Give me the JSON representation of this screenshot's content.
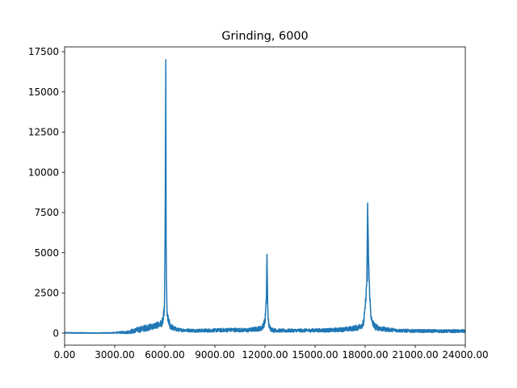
{
  "chart_data": {
    "type": "line",
    "title": "Grinding, 6000",
    "xlabel": "",
    "ylabel": "",
    "xlim": [
      0,
      24000
    ],
    "ylim": [
      -750,
      17800
    ],
    "xticks": [
      0,
      3000,
      6000,
      9000,
      12000,
      15000,
      18000,
      21000,
      24000
    ],
    "xtick_labels": [
      "0.00",
      "3000.00",
      "6000.00",
      "9000.00",
      "12000.00",
      "15000.00",
      "18000.00",
      "21000.00",
      "24000.00"
    ],
    "yticks": [
      0,
      2500,
      5000,
      7500,
      10000,
      12500,
      15000,
      17500
    ],
    "ytick_labels": [
      "0",
      "2500",
      "5000",
      "7500",
      "10000",
      "12500",
      "15000",
      "17500"
    ],
    "grid": false,
    "legend": "none",
    "series": [
      {
        "color": "#1f77b4",
        "x": [
          0,
          1000,
          2000,
          3000,
          3800,
          4200,
          4600,
          5000,
          5300,
          5600,
          5800,
          5900,
          5980,
          6020,
          6060,
          6080,
          6100,
          6120,
          6140,
          6180,
          6220,
          6300,
          6500,
          6800,
          7200,
          8000,
          9000,
          10000,
          11000,
          11800,
          12000,
          12080,
          12120,
          12160,
          12200,
          12240,
          12300,
          12500,
          13000,
          14000,
          15000,
          16000,
          17000,
          17600,
          17900,
          18000,
          18100,
          18150,
          18200,
          18240,
          18280,
          18340,
          18400,
          18600,
          19000,
          20000,
          21000,
          22000,
          23000,
          24000
        ],
        "y": [
          20,
          10,
          0,
          20,
          60,
          150,
          250,
          350,
          420,
          500,
          600,
          800,
          1600,
          6400,
          17000,
          6000,
          3200,
          2000,
          1100,
          900,
          800,
          500,
          300,
          200,
          180,
          150,
          170,
          200,
          180,
          300,
          700,
          2000,
          4900,
          2000,
          700,
          500,
          300,
          180,
          150,
          160,
          170,
          180,
          250,
          350,
          600,
          1500,
          3200,
          8100,
          4900,
          3400,
          2200,
          1200,
          700,
          400,
          250,
          160,
          130,
          130,
          120,
          120
        ],
        "noise": [
          30,
          30,
          20,
          40,
          120,
          200,
          250,
          250,
          250,
          250,
          280,
          350,
          300,
          300,
          0,
          300,
          300,
          300,
          300,
          300,
          300,
          300,
          200,
          140,
          120,
          130,
          140,
          150,
          150,
          200,
          300,
          300,
          0,
          300,
          300,
          250,
          200,
          150,
          130,
          130,
          140,
          150,
          180,
          220,
          300,
          300,
          300,
          0,
          300,
          300,
          300,
          300,
          300,
          250,
          180,
          130,
          120,
          120,
          120,
          120
        ]
      }
    ]
  }
}
